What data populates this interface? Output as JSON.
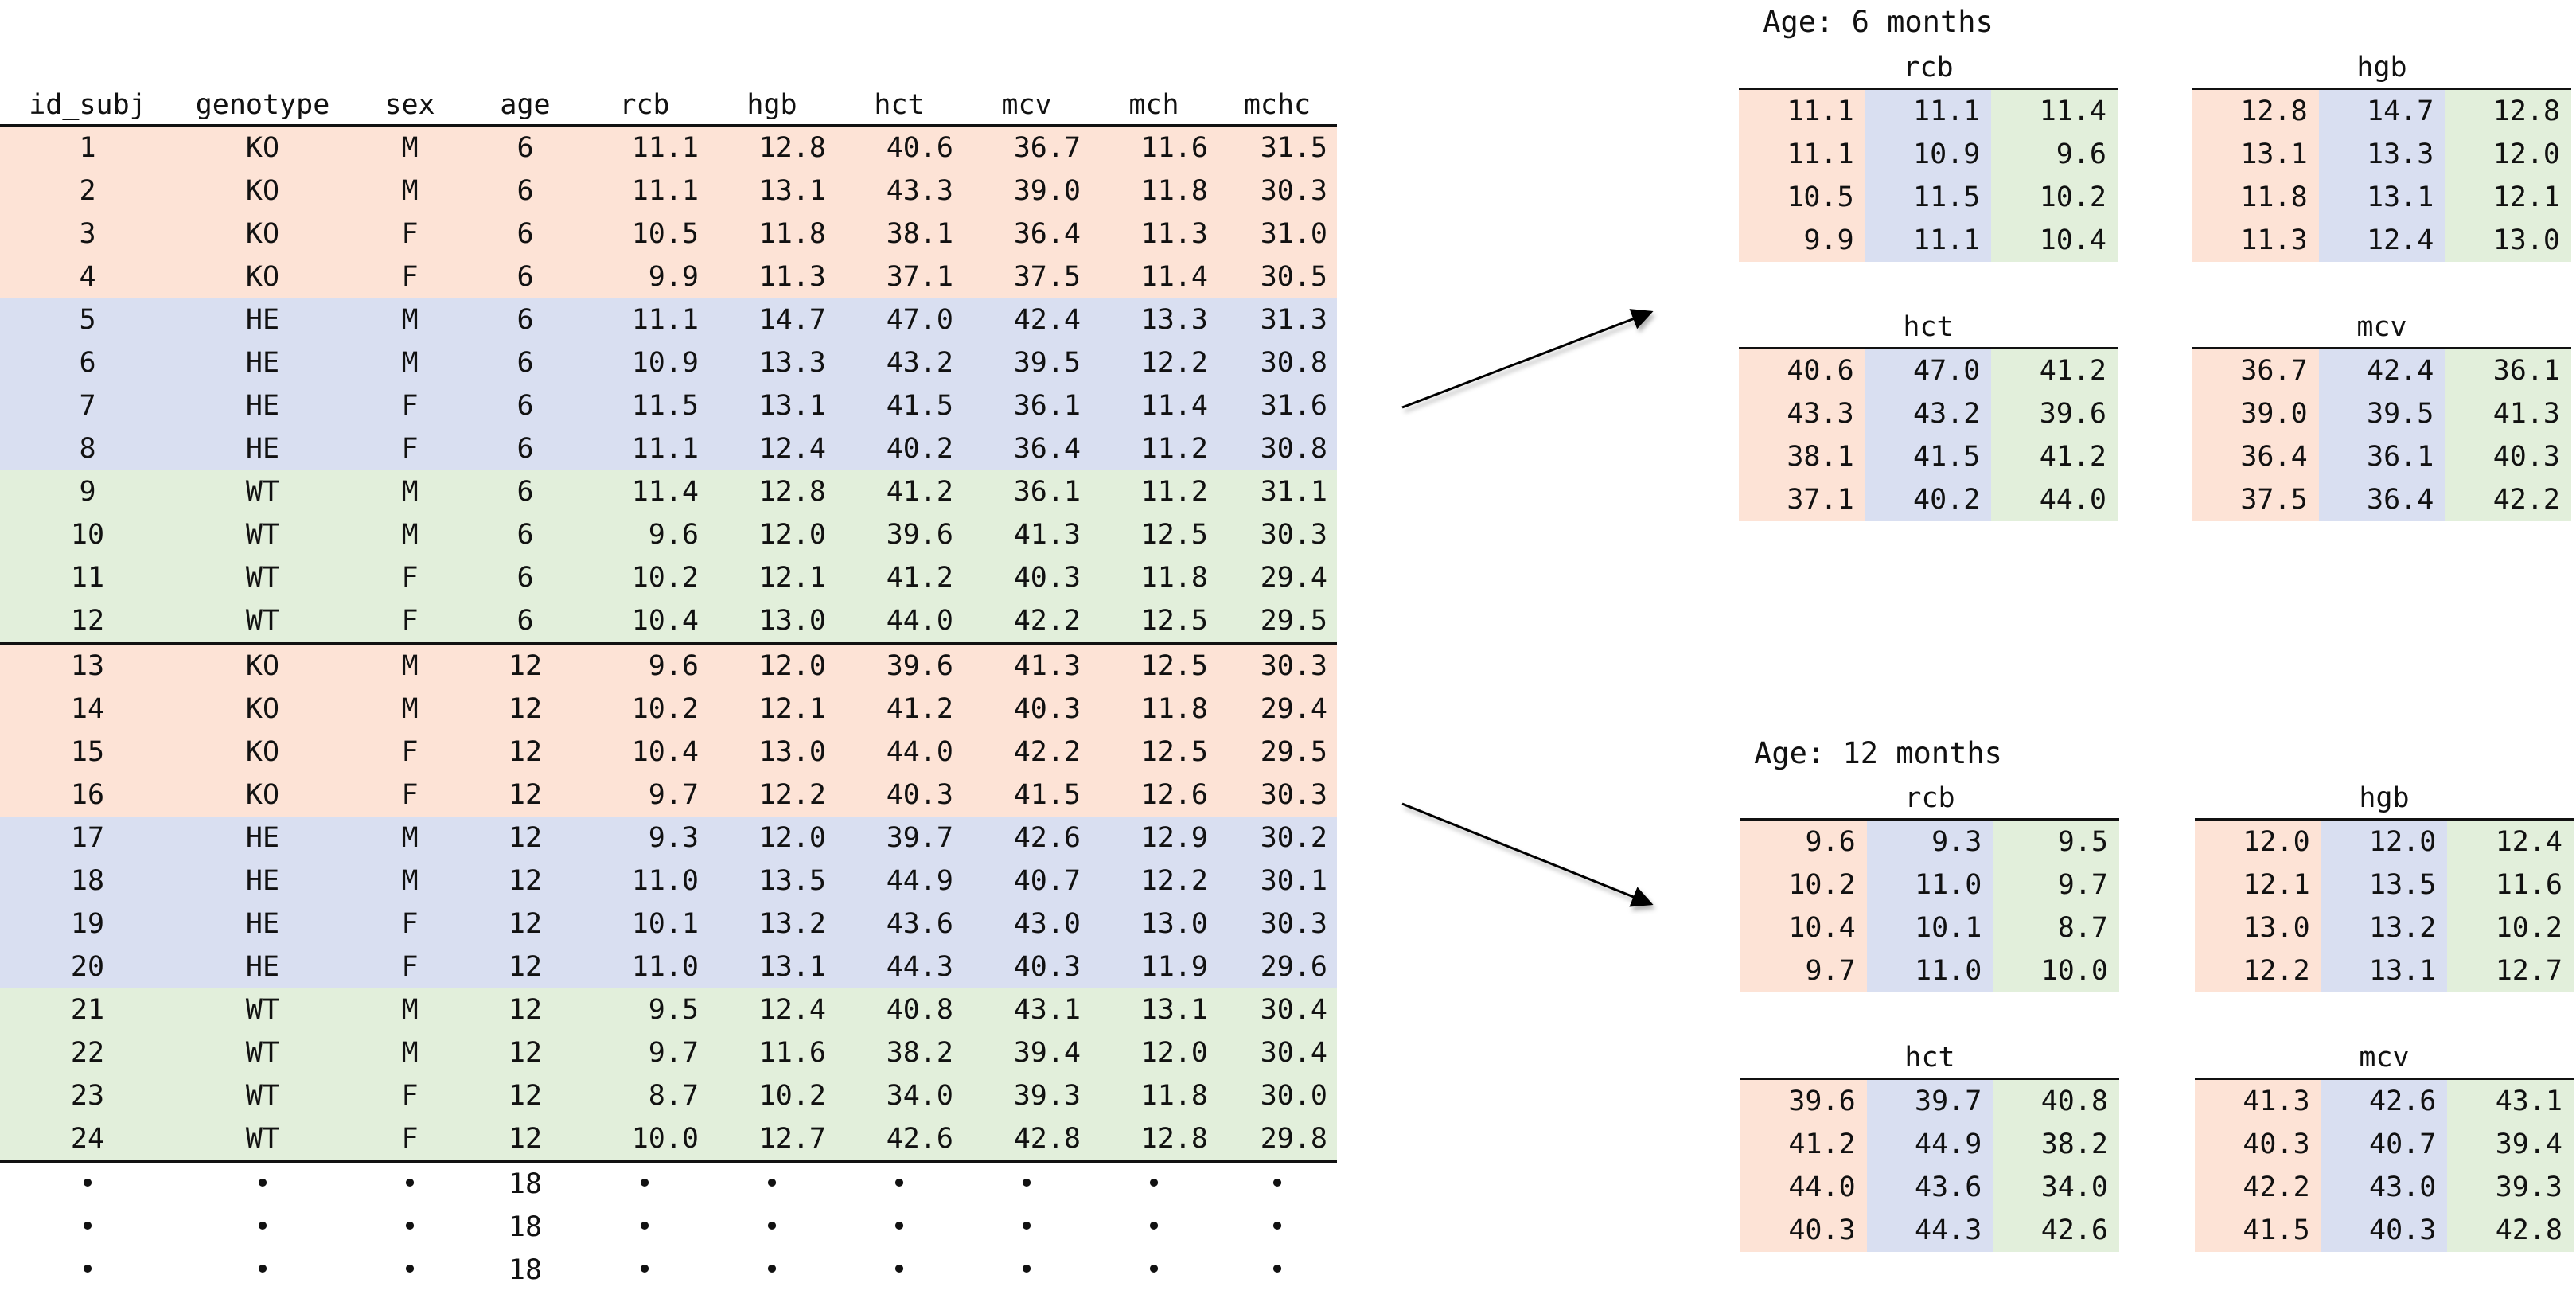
{
  "main_table": {
    "columns": [
      "id_subj",
      "genotype",
      "sex",
      "age",
      "rcb",
      "hgb",
      "hct",
      "mcv",
      "mch",
      "mchc"
    ],
    "rows": [
      {
        "cells": [
          "1",
          "KO",
          "M",
          "6",
          "11.1",
          "12.8",
          "40.6",
          "36.7",
          "11.6",
          "31.5"
        ]
      },
      {
        "cells": [
          "2",
          "KO",
          "M",
          "6",
          "11.1",
          "13.1",
          "43.3",
          "39.0",
          "11.8",
          "30.3"
        ]
      },
      {
        "cells": [
          "3",
          "KO",
          "F",
          "6",
          "10.5",
          "11.8",
          "38.1",
          "36.4",
          "11.3",
          "31.0"
        ]
      },
      {
        "cells": [
          "4",
          "KO",
          "F",
          "6",
          "9.9",
          "11.3",
          "37.1",
          "37.5",
          "11.4",
          "30.5"
        ]
      },
      {
        "cells": [
          "5",
          "HE",
          "M",
          "6",
          "11.1",
          "14.7",
          "47.0",
          "42.4",
          "13.3",
          "31.3"
        ]
      },
      {
        "cells": [
          "6",
          "HE",
          "M",
          "6",
          "10.9",
          "13.3",
          "43.2",
          "39.5",
          "12.2",
          "30.8"
        ]
      },
      {
        "cells": [
          "7",
          "HE",
          "F",
          "6",
          "11.5",
          "13.1",
          "41.5",
          "36.1",
          "11.4",
          "31.6"
        ]
      },
      {
        "cells": [
          "8",
          "HE",
          "F",
          "6",
          "11.1",
          "12.4",
          "40.2",
          "36.4",
          "11.2",
          "30.8"
        ]
      },
      {
        "cells": [
          "9",
          "WT",
          "M",
          "6",
          "11.4",
          "12.8",
          "41.2",
          "36.1",
          "11.2",
          "31.1"
        ]
      },
      {
        "cells": [
          "10",
          "WT",
          "M",
          "6",
          "9.6",
          "12.0",
          "39.6",
          "41.3",
          "12.5",
          "30.3"
        ]
      },
      {
        "cells": [
          "11",
          "WT",
          "F",
          "6",
          "10.2",
          "12.1",
          "41.2",
          "40.3",
          "11.8",
          "29.4"
        ]
      },
      {
        "cells": [
          "12",
          "WT",
          "F",
          "6",
          "10.4",
          "13.0",
          "44.0",
          "42.2",
          "12.5",
          "29.5"
        ]
      },
      {
        "cells": [
          "13",
          "KO",
          "M",
          "12",
          "9.6",
          "12.0",
          "39.6",
          "41.3",
          "12.5",
          "30.3"
        ]
      },
      {
        "cells": [
          "14",
          "KO",
          "M",
          "12",
          "10.2",
          "12.1",
          "41.2",
          "40.3",
          "11.8",
          "29.4"
        ]
      },
      {
        "cells": [
          "15",
          "KO",
          "F",
          "12",
          "10.4",
          "13.0",
          "44.0",
          "42.2",
          "12.5",
          "29.5"
        ]
      },
      {
        "cells": [
          "16",
          "KO",
          "F",
          "12",
          "9.7",
          "12.2",
          "40.3",
          "41.5",
          "12.6",
          "30.3"
        ]
      },
      {
        "cells": [
          "17",
          "HE",
          "M",
          "12",
          "9.3",
          "12.0",
          "39.7",
          "42.6",
          "12.9",
          "30.2"
        ]
      },
      {
        "cells": [
          "18",
          "HE",
          "M",
          "12",
          "11.0",
          "13.5",
          "44.9",
          "40.7",
          "12.2",
          "30.1"
        ]
      },
      {
        "cells": [
          "19",
          "HE",
          "F",
          "12",
          "10.1",
          "13.2",
          "43.6",
          "43.0",
          "13.0",
          "30.3"
        ]
      },
      {
        "cells": [
          "20",
          "HE",
          "F",
          "12",
          "11.0",
          "13.1",
          "44.3",
          "40.3",
          "11.9",
          "29.6"
        ]
      },
      {
        "cells": [
          "21",
          "WT",
          "M",
          "12",
          "9.5",
          "12.4",
          "40.8",
          "43.1",
          "13.1",
          "30.4"
        ]
      },
      {
        "cells": [
          "22",
          "WT",
          "M",
          "12",
          "9.7",
          "11.6",
          "38.2",
          "39.4",
          "12.0",
          "30.4"
        ]
      },
      {
        "cells": [
          "23",
          "WT",
          "F",
          "12",
          "8.7",
          "10.2",
          "34.0",
          "39.3",
          "11.8",
          "30.0"
        ]
      },
      {
        "cells": [
          "24",
          "WT",
          "F",
          "12",
          "10.0",
          "12.7",
          "42.6",
          "42.8",
          "12.8",
          "29.8"
        ]
      }
    ],
    "ellipsis_rows": [
      {
        "cells": [
          "•",
          "•",
          "•",
          "18",
          "•",
          "•",
          "•",
          "•",
          "•",
          "•"
        ]
      },
      {
        "cells": [
          "•",
          "•",
          "•",
          "18",
          "•",
          "•",
          "•",
          "•",
          "•",
          "•"
        ]
      },
      {
        "cells": [
          "•",
          "•",
          "•",
          "18",
          "•",
          "•",
          "•",
          "•",
          "•",
          "•"
        ]
      }
    ]
  },
  "groups": {
    "colors": {
      "KO": "#fde3d6",
      "HE": "#d9dff1",
      "WT": "#e2efdb"
    }
  },
  "panels": [
    {
      "title": "Age: 6 months",
      "subtables": [
        {
          "name": "rcb",
          "rows": [
            [
              "11.1",
              "11.1",
              "11.4"
            ],
            [
              "11.1",
              "10.9",
              "9.6"
            ],
            [
              "10.5",
              "11.5",
              "10.2"
            ],
            [
              "9.9",
              "11.1",
              "10.4"
            ]
          ]
        },
        {
          "name": "hgb",
          "rows": [
            [
              "12.8",
              "14.7",
              "12.8"
            ],
            [
              "13.1",
              "13.3",
              "12.0"
            ],
            [
              "11.8",
              "13.1",
              "12.1"
            ],
            [
              "11.3",
              "12.4",
              "13.0"
            ]
          ]
        },
        {
          "name": "hct",
          "rows": [
            [
              "40.6",
              "47.0",
              "41.2"
            ],
            [
              "43.3",
              "43.2",
              "39.6"
            ],
            [
              "38.1",
              "41.5",
              "41.2"
            ],
            [
              "37.1",
              "40.2",
              "44.0"
            ]
          ]
        },
        {
          "name": "mcv",
          "rows": [
            [
              "36.7",
              "42.4",
              "36.1"
            ],
            [
              "39.0",
              "39.5",
              "41.3"
            ],
            [
              "36.4",
              "36.1",
              "40.3"
            ],
            [
              "37.5",
              "36.4",
              "42.2"
            ]
          ]
        }
      ]
    },
    {
      "title": "Age: 12 months",
      "subtables": [
        {
          "name": "rcb",
          "rows": [
            [
              "9.6",
              "9.3",
              "9.5"
            ],
            [
              "10.2",
              "11.0",
              "9.7"
            ],
            [
              "10.4",
              "10.1",
              "8.7"
            ],
            [
              "9.7",
              "11.0",
              "10.0"
            ]
          ]
        },
        {
          "name": "hgb",
          "rows": [
            [
              "12.0",
              "12.0",
              "12.4"
            ],
            [
              "12.1",
              "13.5",
              "11.6"
            ],
            [
              "13.0",
              "13.2",
              "10.2"
            ],
            [
              "12.2",
              "13.1",
              "12.7"
            ]
          ]
        },
        {
          "name": "hct",
          "rows": [
            [
              "39.6",
              "39.7",
              "40.8"
            ],
            [
              "41.2",
              "44.9",
              "38.2"
            ],
            [
              "44.0",
              "43.6",
              "34.0"
            ],
            [
              "40.3",
              "44.3",
              "42.6"
            ]
          ]
        },
        {
          "name": "mcv",
          "rows": [
            [
              "41.3",
              "42.6",
              "43.1"
            ],
            [
              "40.3",
              "40.7",
              "39.4"
            ],
            [
              "42.2",
              "43.0",
              "39.3"
            ],
            [
              "41.5",
              "40.3",
              "42.8"
            ]
          ]
        }
      ]
    }
  ]
}
